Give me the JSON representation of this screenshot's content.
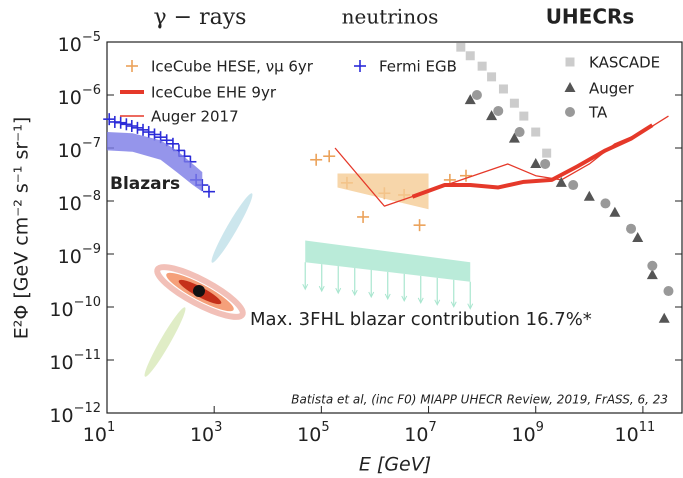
{
  "chart_data": {
    "type": "loglog",
    "top_labels": [
      {
        "text": "γ − rays",
        "color": "#2b2bd8"
      },
      {
        "text": "neutrinos",
        "color": "#eba25a"
      },
      {
        "text": "UHECRs",
        "color": "#666666"
      }
    ],
    "xlabel": "E [GeV]",
    "ylabel": "E²Φ [GeV cm⁻² s⁻¹ sr⁻¹]",
    "note": "Batista et al, (inc F0) MIAPP UHECR Review, 2019, FrASS, 6, 23",
    "xscale": "log",
    "yscale": "log",
    "xlim": [
      10,
      560000000000.0
    ],
    "ylim": [
      1e-12,
      1e-05
    ],
    "xticks": [
      {
        "value": 10,
        "label": "101"
      },
      {
        "value": 1000,
        "label": "103"
      },
      {
        "value": 100000,
        "label": "105"
      },
      {
        "value": 10000000,
        "label": "107"
      },
      {
        "value": 1000000000,
        "label": "109"
      },
      {
        "value": 100000000000,
        "label": "1011"
      }
    ],
    "yticks": [
      {
        "value": 1e-12,
        "label": "10−12"
      },
      {
        "value": 1e-11,
        "label": "10−11"
      },
      {
        "value": 1e-10,
        "label": "10−10"
      },
      {
        "value": 1e-09,
        "label": "10−9"
      },
      {
        "value": 1e-08,
        "label": "10−8"
      },
      {
        "value": 1e-07,
        "label": "10−7"
      },
      {
        "value": 1e-06,
        "label": "10−6"
      },
      {
        "value": 1e-05,
        "label": "10−5"
      }
    ],
    "series": [
      {
        "name": "Fermi EGB",
        "color": "#2b2bd8",
        "style": "plus",
        "legend": true,
        "x": [
          11,
          14,
          18,
          23,
          29,
          37,
          47,
          60,
          77,
          100,
          130,
          170,
          220,
          280,
          360,
          460,
          600,
          800
        ],
        "values": [
          3.5e-07,
          3.1e-07,
          3e-07,
          2.8e-07,
          2.6e-07,
          2.4e-07,
          2.2e-07,
          2e-07,
          1.8e-07,
          1.6e-07,
          1.4e-07,
          1.2e-07,
          9e-08,
          7e-08,
          5.5e-08,
          2.5e-08,
          2e-08,
          1.5e-08
        ]
      },
      {
        "name": "Blazars",
        "color": "#7a7ae6",
        "style": "band",
        "legend": false,
        "x": [
          10,
          30,
          100,
          200,
          400,
          600
        ],
        "upper": [
          2e-07,
          1.9e-07,
          1.4e-07,
          9e-08,
          5e-08,
          3.5e-08
        ],
        "lower": [
          9e-08,
          8.5e-08,
          6e-08,
          3.5e-08,
          2e-08,
          1.5e-08
        ]
      },
      {
        "name": "IceCube HESE, νμ 6yr",
        "color": "#eba25a",
        "style": "plus",
        "legend": true,
        "x": [
          80000,
          140000,
          300000,
          600000,
          1500000,
          3500000,
          6800000,
          25000000,
          50000000
        ],
        "values": [
          6e-08,
          7e-08,
          2.2e-08,
          5e-09,
          1.4e-08,
          1.3e-08,
          3.5e-09,
          2.5e-08,
          3e-08
        ]
      },
      {
        "color": "#f5cc95",
        "style": "band",
        "legend": false,
        "x": [
          200000,
          10000000
        ],
        "upper": [
          3.3e-08,
          3.3e-08
        ],
        "lower": [
          1.8e-08,
          7e-09
        ]
      },
      {
        "name": "IceCube EHE 9yr",
        "color": "#e5392a",
        "style": "thick-line",
        "legend": true,
        "x": [
          5000000,
          20000000,
          60000000,
          200000000,
          600000000,
          2000000000,
          6000000000,
          20000000000,
          60000000000,
          150000000000
        ],
        "values": [
          1.2e-08,
          2e-08,
          2e-08,
          1.8e-08,
          2.3e-08,
          2.5e-08,
          4.5e-08,
          9e-08,
          1.5e-07,
          2.7e-07
        ]
      },
      {
        "name": "Auger 2017",
        "color": "#e5392a",
        "style": "thin-line",
        "legend": true,
        "x": [
          180000,
          1500000,
          300000000,
          1000000000,
          3000000000,
          10000000000,
          30000000000,
          100000000000,
          300000000000
        ],
        "values": [
          1e-07,
          8e-09,
          5e-08,
          3e-08,
          2.5e-08,
          5e-08,
          1.2e-07,
          2e-07,
          4e-07
        ]
      },
      {
        "name": "KASCADE",
        "color": "#cccccc",
        "style": "square",
        "legend": true,
        "x": [
          40000000,
          60000000,
          100000000,
          150000000,
          250000000,
          400000000,
          600000000,
          1000000000,
          1600000000
        ],
        "values": [
          8e-06,
          5.5e-06,
          3.5e-06,
          2.2e-06,
          1.3e-06,
          7e-07,
          4e-07,
          2e-07,
          8e-08
        ]
      },
      {
        "name": "Auger",
        "color": "#555555",
        "style": "triangle",
        "legend": true,
        "x": [
          60000000,
          150000000,
          400000000,
          1000000000,
          3000000000,
          10000000000,
          30000000000,
          80000000000,
          150000000000,
          250000000000
        ],
        "values": [
          8e-07,
          4e-07,
          1.5e-07,
          5e-08,
          2.2e-08,
          1.2e-08,
          6e-09,
          2e-09,
          4e-10,
          6e-11
        ]
      },
      {
        "name": "TA",
        "color": "#999999",
        "style": "circle",
        "legend": true,
        "x": [
          80000000,
          200000000,
          500000000,
          1500000000,
          5000000000,
          20000000000,
          60000000000,
          150000000000,
          300000000000
        ],
        "values": [
          1e-06,
          5e-07,
          2e-07,
          5e-08,
          2e-08,
          9e-09,
          3e-09,
          6e-10,
          2e-10
        ]
      },
      {
        "name": "Max. 3FHL blazar contribution 16.7%*",
        "color": "#a9e6cf",
        "style": "band-limit",
        "legend": false,
        "x": [
          50000,
          60000000
        ],
        "upper": [
          1.8e-09,
          7e-10
        ],
        "lower": [
          7e-10,
          3e-10
        ]
      }
    ]
  }
}
